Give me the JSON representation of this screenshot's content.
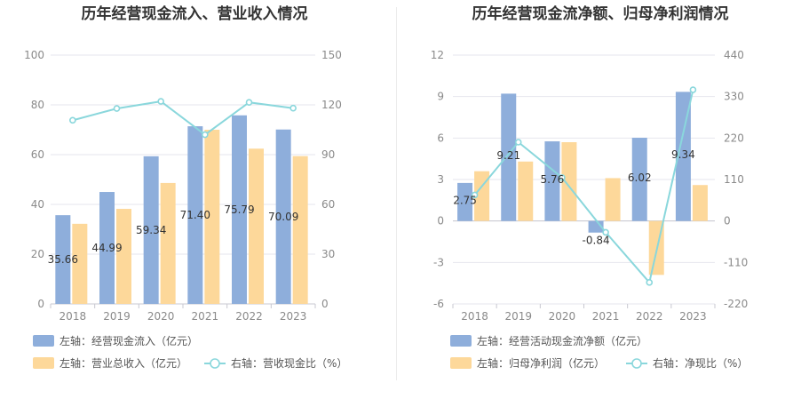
{
  "chart_data": [
    {
      "type": "bar",
      "title": "历年经营现金流入、营业收入情况",
      "categories": [
        "2018",
        "2019",
        "2020",
        "2021",
        "2022",
        "2023"
      ],
      "left_axis": {
        "min": 0,
        "max": 100,
        "ticks": [
          0,
          20,
          40,
          60,
          80,
          100
        ]
      },
      "right_axis": {
        "min": 0,
        "max": 150,
        "ticks": [
          0,
          30,
          60,
          90,
          120,
          150
        ]
      },
      "series": [
        {
          "name": "左轴：经营现金流入（亿元）",
          "kind": "bar",
          "axis": "left",
          "color": "#8eaedb",
          "values": [
            35.66,
            44.99,
            59.34,
            71.4,
            75.79,
            70.09
          ],
          "labels": [
            "35.66",
            "44.99",
            "59.34",
            "71.40",
            "75.79",
            "70.09"
          ]
        },
        {
          "name": "左轴：营业总收入（亿元）",
          "kind": "bar",
          "axis": "left",
          "color": "#fdd89a",
          "values": [
            32.2,
            38.2,
            48.6,
            70.0,
            62.4,
            59.4
          ]
        },
        {
          "name": "右轴：营收现金比（%）",
          "kind": "line",
          "axis": "right",
          "color": "#8ad7dc",
          "values": [
            110.7,
            117.8,
            122.1,
            102.0,
            121.5,
            118.0
          ]
        }
      ],
      "grid": true,
      "legend_position": "bottom"
    },
    {
      "type": "bar",
      "title": "历年经营现金流净额、归母净利润情况",
      "categories": [
        "2018",
        "2019",
        "2020",
        "2021",
        "2022",
        "2023"
      ],
      "left_axis": {
        "min": -6,
        "max": 12,
        "ticks": [
          -6,
          -3,
          0,
          3,
          6,
          9,
          12
        ]
      },
      "right_axis": {
        "min": -220,
        "max": 440,
        "ticks": [
          -220,
          -110,
          0,
          110,
          220,
          330,
          440
        ]
      },
      "series": [
        {
          "name": "左轴：经营活动现金流净额（亿元）",
          "kind": "bar",
          "axis": "left",
          "color": "#8eaedb",
          "values": [
            2.75,
            9.21,
            5.76,
            -0.84,
            6.02,
            9.34
          ],
          "labels": [
            "2.75",
            "9.21",
            "5.76",
            "-0.84",
            "6.02",
            "9.34"
          ]
        },
        {
          "name": "左轴：归母净利润（亿元）",
          "kind": "bar",
          "axis": "left",
          "color": "#fdd89a",
          "values": [
            3.6,
            4.3,
            5.7,
            3.1,
            -3.9,
            2.6
          ]
        },
        {
          "name": "右轴：净现比（%）",
          "kind": "line",
          "axis": "right",
          "color": "#8ad7dc",
          "values": [
            69,
            209,
            115,
            -30,
            -163,
            348
          ]
        }
      ],
      "grid": true,
      "legend_position": "bottom"
    }
  ]
}
